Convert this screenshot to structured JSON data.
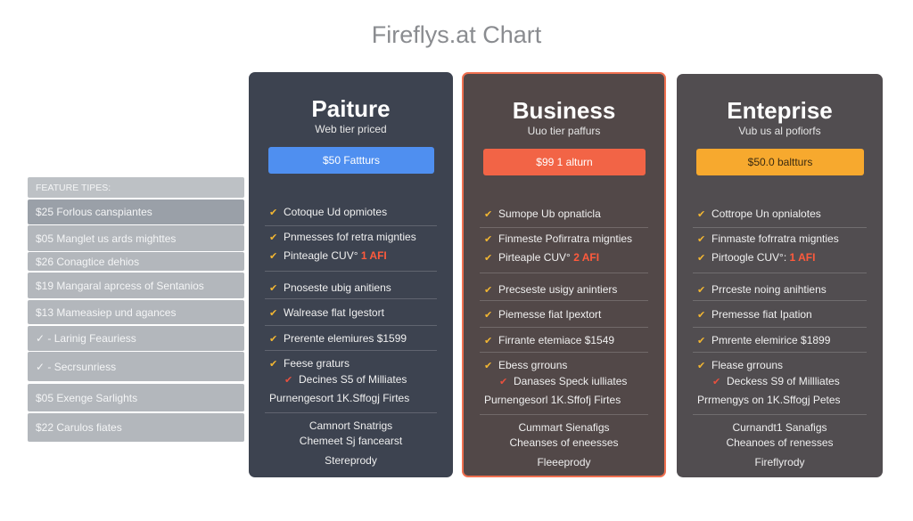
{
  "title": "Fireflys.at Chart",
  "feature_table": {
    "header": "FEATURE TIPES:",
    "rows": [
      "$25 Forlous canspiantes",
      "$05 Manglet us ards mighttes",
      "$26 Conagtice dehios",
      "$19 Mangaral aprcess of Sentanios",
      "$13 Mameasiep und agances",
      "✓ - Larinig Feauriess",
      "✓ - Secrsunriess",
      "$05 Exenge Sarlights",
      "$22 Carulos fiates"
    ]
  },
  "colors": {
    "blue": "#4f8ff0",
    "orange": "#f26446",
    "amber": "#f7a92e",
    "check": "#f2b632"
  },
  "plans": [
    {
      "name": "Paiture",
      "subtitle": "Web tier priced",
      "button": "$50 Fattturs",
      "features": [
        "Cotoque Ud opmiotes",
        "Pnmesses fof retra mignties",
        "Pinteagle CUV°",
        "Pnoseste ubig anitiens",
        "Walrease flat Igestort",
        "Prerente elemiures $1599",
        "Feese graturs",
        "Decines S5 of Milliates",
        "Purnengesort 1K.Sffogj Firtes"
      ],
      "highlight": "1 AFI",
      "footer": [
        "Camnort Snatrigs",
        "Chemeet Sj fancearst",
        "Stereprody"
      ]
    },
    {
      "name": "Business",
      "subtitle": "Uuo tier paffurs",
      "button": "$99 1 alturn",
      "features": [
        "Sumope Ub opnaticla",
        "Finmeste Pofirratra mignties",
        "Pirteaple CUV°",
        "Precseste usigy anintiers",
        "Piemesse fiat Ipextort",
        "Firrante etemiace $1549",
        "Ebess grrouns",
        "Danases Speck iulliates",
        "Purnengesorl 1K.Sffofj Firtes"
      ],
      "highlight": "2 AFI",
      "footer": [
        "Cummart Sienafigs",
        "Cheanses of eneesses",
        "Fleeeprody"
      ]
    },
    {
      "name": "Enteprise",
      "subtitle": "Vub us al pofiorfs",
      "button": "$50.0 baltturs",
      "features": [
        "Cottrope Un opnialotes",
        "Finmaste fofrratra mignties",
        "Pirtoogle CUV°:",
        "Prrceste noing anihtiens",
        "Premesse fiat Ipation",
        "Pmrente elemirice $1899",
        "Flease grrouns",
        "Deckess S9 of Millliates",
        "Prrmengys on 1K.Sffogj Petes"
      ],
      "highlight": "1 AFI",
      "footer": [
        "Curnandt1 Sanafigs",
        "Cheanoes of renesses",
        "Fireflyrody"
      ]
    }
  ]
}
